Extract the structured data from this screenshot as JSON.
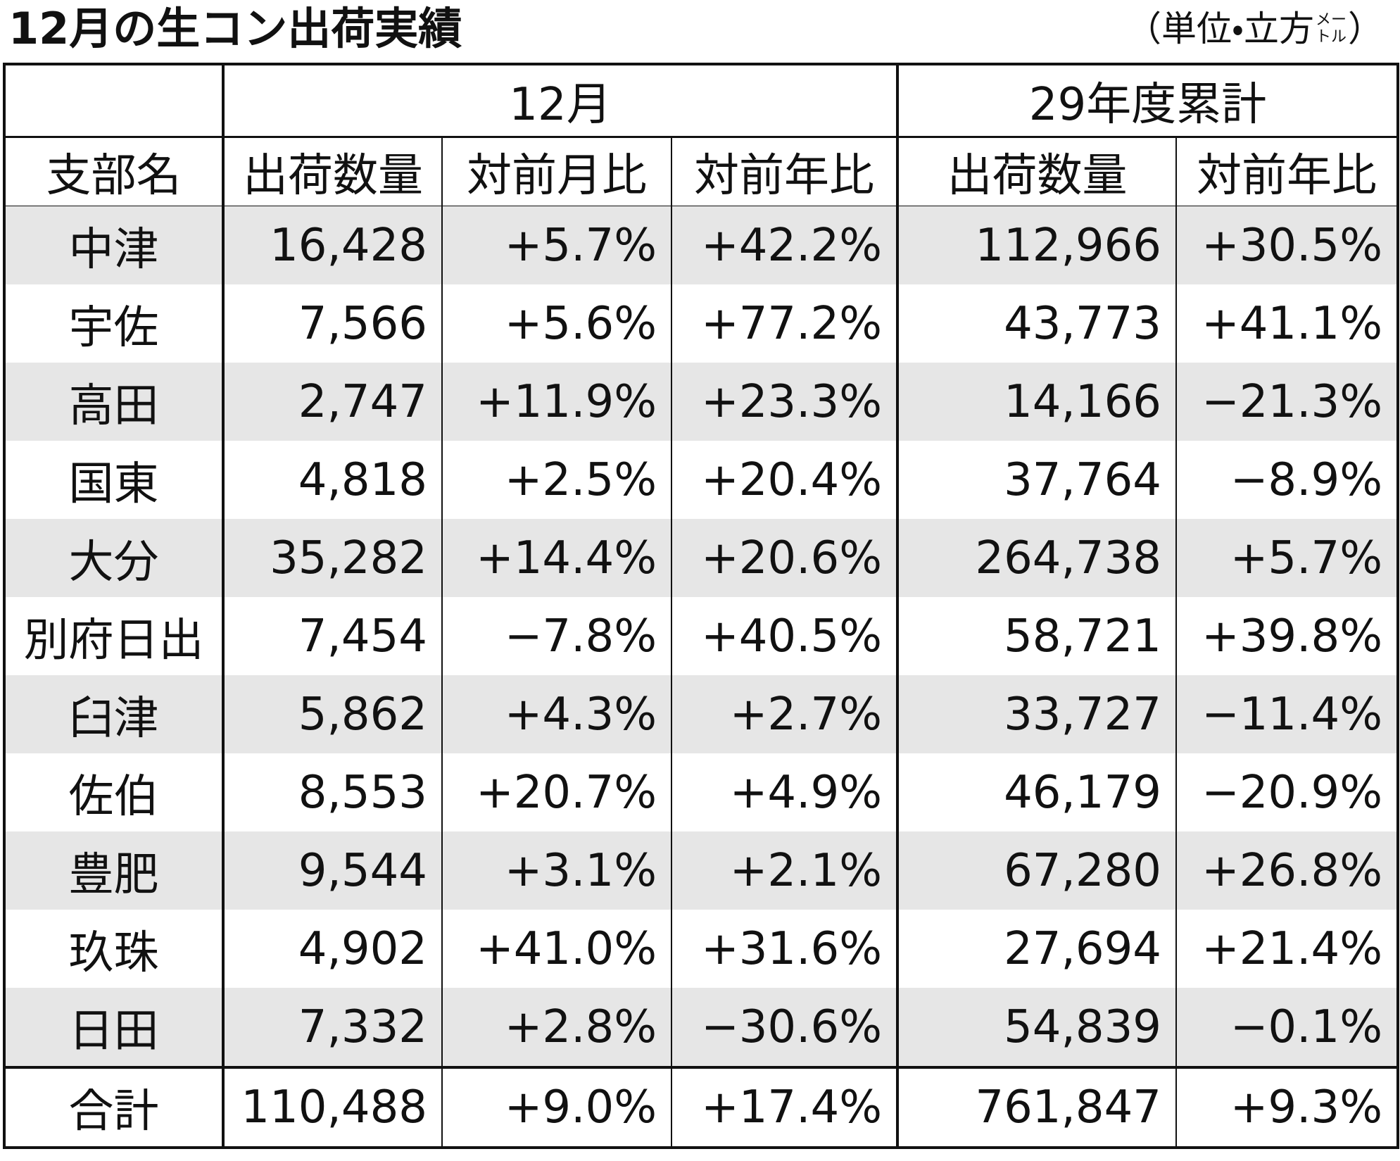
{
  "header": {
    "title": "12月の生コン出荷実績",
    "unit_prefix": "（単位・立方",
    "unit_small_top": "メー",
    "unit_small_bottom": "トル",
    "unit_suffix": "）"
  },
  "table": {
    "group_headers": [
      "12月",
      "29年度累計"
    ],
    "columns": [
      "支部名",
      "出荷数量",
      "対前月比",
      "対前年比",
      "出荷数量",
      "対前年比"
    ],
    "rows": [
      [
        "中津",
        "16,428",
        "+5.7%",
        "+42.2%",
        "112,966",
        "+30.5%"
      ],
      [
        "宇佐",
        "7,566",
        "+5.6%",
        "+77.2%",
        "43,773",
        "+41.1%"
      ],
      [
        "高田",
        "2,747",
        "+11.9%",
        "+23.3%",
        "14,166",
        "−21.3%"
      ],
      [
        "国東",
        "4,818",
        "+2.5%",
        "+20.4%",
        "37,764",
        "−8.9%"
      ],
      [
        "大分",
        "35,282",
        "+14.4%",
        "+20.6%",
        "264,738",
        "+5.7%"
      ],
      [
        "別府日出",
        "7,454",
        "−7.8%",
        "+40.5%",
        "58,721",
        "+39.8%"
      ],
      [
        "臼津",
        "5,862",
        "+4.3%",
        "+2.7%",
        "33,727",
        "−11.4%"
      ],
      [
        "佐伯",
        "8,553",
        "+20.7%",
        "+4.9%",
        "46,179",
        "−20.9%"
      ],
      [
        "豊肥",
        "9,544",
        "+3.1%",
        "+2.1%",
        "67,280",
        "+26.8%"
      ],
      [
        "玖珠",
        "4,902",
        "+41.0%",
        "+31.6%",
        "27,694",
        "+21.4%"
      ],
      [
        "日田",
        "7,332",
        "+2.8%",
        "−30.6%",
        "54,839",
        "−0.1%"
      ]
    ],
    "total": [
      "合計",
      "110,488",
      "+9.0%",
      "+17.4%",
      "761,847",
      "+9.3%"
    ]
  }
}
